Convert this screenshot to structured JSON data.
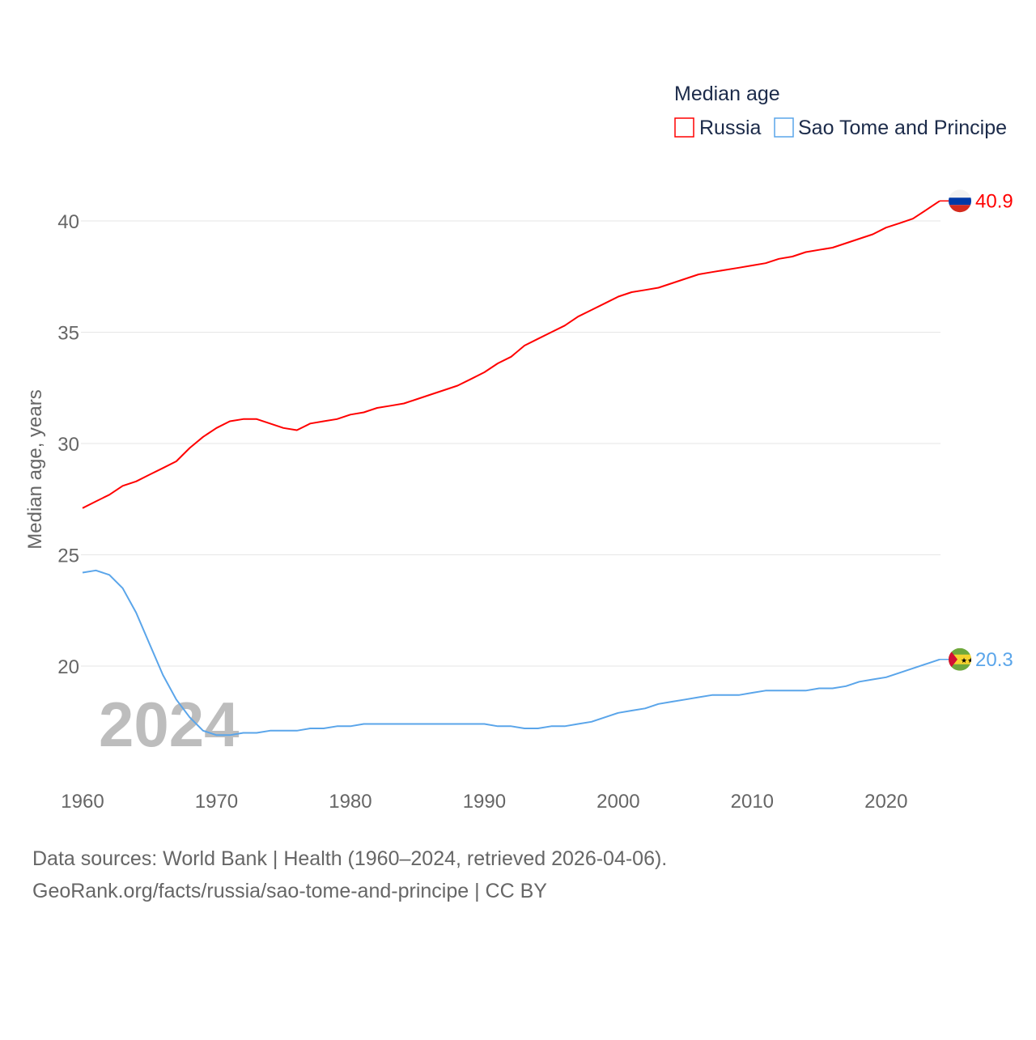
{
  "chart_data": {
    "type": "line",
    "title": "Median age",
    "xlabel": "",
    "ylabel": "Median age, years",
    "xlim": [
      1960,
      2024
    ],
    "ylim": [
      16,
      42
    ],
    "x_ticks": [
      "1960",
      "1970",
      "1980",
      "1990",
      "2000",
      "2010",
      "2020"
    ],
    "y_ticks": [
      "20",
      "25",
      "30",
      "35",
      "40"
    ],
    "grid": true,
    "legend_placement": "top-right",
    "year_watermark": "2024",
    "x": [
      1960,
      1961,
      1962,
      1963,
      1964,
      1965,
      1966,
      1967,
      1968,
      1969,
      1970,
      1971,
      1972,
      1973,
      1974,
      1975,
      1976,
      1977,
      1978,
      1979,
      1980,
      1981,
      1982,
      1983,
      1984,
      1985,
      1986,
      1987,
      1988,
      1989,
      1990,
      1991,
      1992,
      1993,
      1994,
      1995,
      1996,
      1997,
      1998,
      1999,
      2000,
      2001,
      2002,
      2003,
      2004,
      2005,
      2006,
      2007,
      2008,
      2009,
      2010,
      2011,
      2012,
      2013,
      2014,
      2015,
      2016,
      2017,
      2018,
      2019,
      2020,
      2021,
      2022,
      2023,
      2024
    ],
    "series": [
      {
        "name": "Russia",
        "color": "#ff0000",
        "end_label": "40.9",
        "flag": "russia-flag",
        "values": [
          27.1,
          27.4,
          27.7,
          28.1,
          28.3,
          28.6,
          28.9,
          29.2,
          29.8,
          30.3,
          30.7,
          31.0,
          31.1,
          31.1,
          30.9,
          30.7,
          30.6,
          30.9,
          31.0,
          31.1,
          31.3,
          31.4,
          31.6,
          31.7,
          31.8,
          32.0,
          32.2,
          32.4,
          32.6,
          32.9,
          33.2,
          33.6,
          33.9,
          34.4,
          34.7,
          35.0,
          35.3,
          35.7,
          36.0,
          36.3,
          36.6,
          36.8,
          36.9,
          37.0,
          37.2,
          37.4,
          37.6,
          37.7,
          37.8,
          37.9,
          38.0,
          38.1,
          38.3,
          38.4,
          38.6,
          38.7,
          38.8,
          39.0,
          39.2,
          39.4,
          39.7,
          39.9,
          40.1,
          40.5,
          40.9
        ]
      },
      {
        "name": "Sao Tome and Principe",
        "color": "#5aa5ea",
        "end_label": "20.3",
        "flag": "sao-tome-flag",
        "values": [
          24.2,
          24.3,
          24.1,
          23.5,
          22.4,
          21.0,
          19.6,
          18.5,
          17.7,
          17.1,
          16.9,
          16.9,
          17.0,
          17.0,
          17.1,
          17.1,
          17.1,
          17.2,
          17.2,
          17.3,
          17.3,
          17.4,
          17.4,
          17.4,
          17.4,
          17.4,
          17.4,
          17.4,
          17.4,
          17.4,
          17.4,
          17.3,
          17.3,
          17.2,
          17.2,
          17.3,
          17.3,
          17.4,
          17.5,
          17.7,
          17.9,
          18.0,
          18.1,
          18.3,
          18.4,
          18.5,
          18.6,
          18.7,
          18.7,
          18.7,
          18.8,
          18.9,
          18.9,
          18.9,
          18.9,
          19.0,
          19.0,
          19.1,
          19.3,
          19.4,
          19.5,
          19.7,
          19.9,
          20.1,
          20.3
        ]
      }
    ]
  },
  "footer": {
    "line1": "Data sources: World Bank | Health (1960–2024, retrieved 2026-04-06).",
    "line2": "GeoRank.org/facts/russia/sao-tome-and-principe | CC BY"
  }
}
